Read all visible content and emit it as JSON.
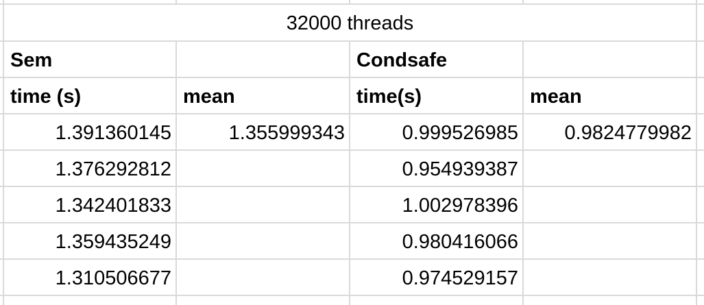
{
  "sheet": {
    "title": "32000 threads",
    "group_headers": [
      "Sem",
      "",
      "Condsafe",
      ""
    ],
    "column_headers": [
      "time (s)",
      "mean",
      "time(s)",
      "mean"
    ],
    "rows": [
      [
        "1.391360145",
        "1.355999343",
        "0.999526985",
        "0.9824779982"
      ],
      [
        "1.376292812",
        "",
        "0.954939387",
        ""
      ],
      [
        "1.342401833",
        "",
        "1.002978396",
        ""
      ],
      [
        "1.359435249",
        "",
        "0.980416066",
        ""
      ],
      [
        "1.310506677",
        "",
        "0.974529157",
        ""
      ]
    ]
  },
  "colors": {
    "gridline": "#d9d9d9",
    "text": "#000000",
    "background": "#ffffff"
  }
}
